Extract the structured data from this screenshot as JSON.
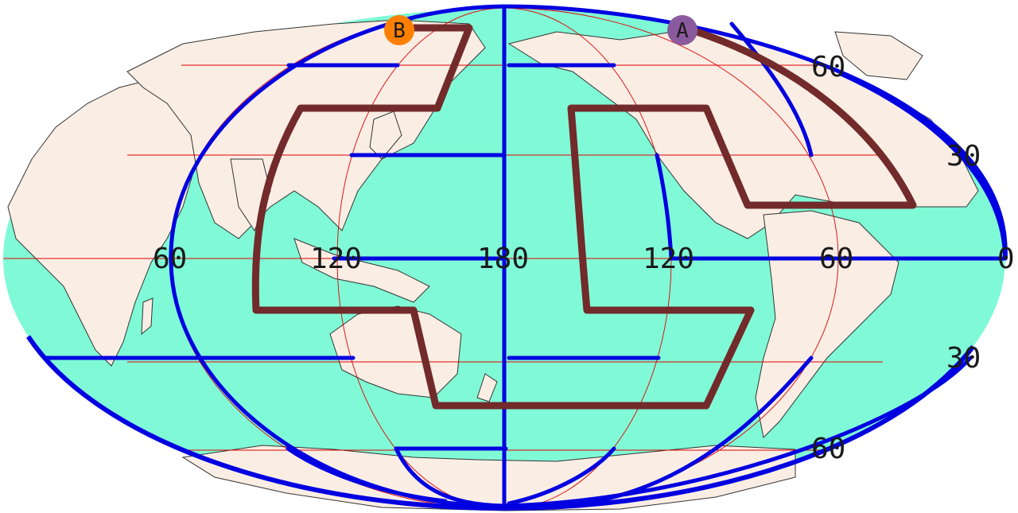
{
  "map": {
    "projection": "Mollweide",
    "center_meridian": 180,
    "colors": {
      "ocean": "#80fad6",
      "land": "#faeee4",
      "coast": "#333333",
      "graticule": "#e00000",
      "blue_lines": "#0000e0",
      "brown_outline": "#722a2a",
      "marker_a": "#8b5a9e",
      "marker_b": "#ff8000"
    },
    "longitude_labels": [
      "60",
      "120",
      "180",
      "120",
      "60",
      "0"
    ],
    "latitude_labels": [
      "60",
      "30",
      "30",
      "60"
    ],
    "markers": [
      {
        "label": "A",
        "color": "#8b5a9e",
        "icon": "circle"
      },
      {
        "label": "B",
        "color": "#ff8000",
        "icon": "circle"
      }
    ]
  }
}
